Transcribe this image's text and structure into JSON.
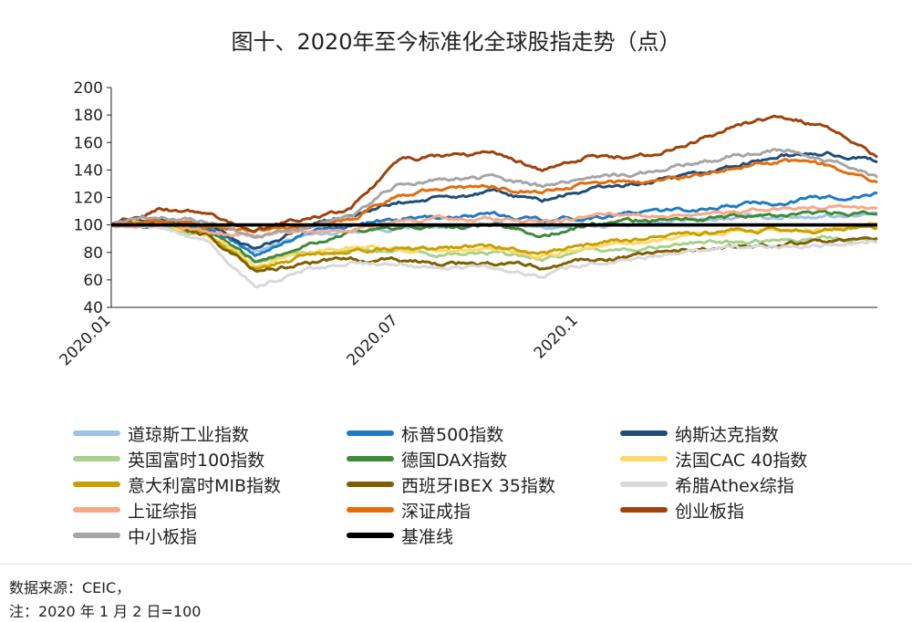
{
  "title": "图十、2020年至今标准化全球股指走势（点）",
  "notes": {
    "source": "数据来源：CEIC，",
    "base": "注：2020 年 1 月 2 日=100"
  },
  "chart_data": {
    "type": "line",
    "ylim": [
      40,
      200
    ],
    "yticks": [
      "200",
      "180",
      "160",
      "140",
      "120",
      "100",
      "80",
      "60",
      "40"
    ],
    "xtick_labels": [
      "2020.01",
      "2020.07",
      "2020.1"
    ],
    "grid": false,
    "legend_position": "bottom",
    "series": [
      {
        "name": "道琼斯工业指数",
        "color": "#9dc3e6",
        "values": [
          100,
          101,
          98,
          80,
          92,
          96,
          98,
          99,
          100,
          98,
          99,
          101,
          103,
          105,
          106,
          107,
          108
        ]
      },
      {
        "name": "标普500指数",
        "color": "#1f7cc4",
        "values": [
          100,
          102,
          97,
          78,
          94,
          100,
          104,
          106,
          107,
          104,
          106,
          109,
          111,
          114,
          117,
          120,
          122
        ]
      },
      {
        "name": "纳斯达克指数",
        "color": "#1f4e79",
        "values": [
          100,
          104,
          100,
          82,
          98,
          108,
          116,
          120,
          123,
          118,
          126,
          130,
          134,
          143,
          150,
          152,
          146
        ]
      },
      {
        "name": "英国富时100指数",
        "color": "#a9d18e",
        "values": [
          100,
          99,
          93,
          72,
          80,
          82,
          80,
          78,
          79,
          76,
          80,
          83,
          86,
          88,
          90,
          91,
          90
        ]
      },
      {
        "name": "德国DAX指数",
        "color": "#3d8b37",
        "values": [
          100,
          102,
          95,
          73,
          86,
          94,
          98,
          99,
          100,
          92,
          100,
          103,
          104,
          106,
          107,
          108,
          110
        ]
      },
      {
        "name": "法国CAC 40指数",
        "color": "#ffd966",
        "values": [
          100,
          101,
          94,
          71,
          80,
          84,
          83,
          82,
          82,
          78,
          84,
          88,
          92,
          95,
          97,
          98,
          100
        ]
      },
      {
        "name": "意大利富时MIB指数",
        "color": "#c9a000",
        "values": [
          100,
          102,
          94,
          68,
          77,
          82,
          83,
          84,
          84,
          80,
          86,
          90,
          93,
          95,
          96,
          97,
          97
        ]
      },
      {
        "name": "西班牙IBEX 35指数",
        "color": "#7f6000",
        "values": [
          100,
          101,
          93,
          66,
          72,
          75,
          74,
          72,
          72,
          69,
          74,
          78,
          82,
          85,
          86,
          87,
          89
        ]
      },
      {
        "name": "希腊Athex综指",
        "color": "#d9d9d9",
        "values": [
          100,
          99,
          88,
          55,
          66,
          72,
          71,
          69,
          69,
          63,
          72,
          76,
          80,
          83,
          84,
          85,
          88
        ]
      },
      {
        "name": "上证综指",
        "color": "#f8a887",
        "values": [
          100,
          101,
          94,
          92,
          95,
          97,
          102,
          104,
          104,
          103,
          106,
          107,
          108,
          110,
          112,
          113,
          112
        ]
      },
      {
        "name": "深证成指",
        "color": "#e46c0a",
        "values": [
          100,
          104,
          100,
          94,
          98,
          104,
          122,
          127,
          128,
          124,
          130,
          131,
          135,
          141,
          147,
          143,
          130
        ]
      },
      {
        "name": "创业板指",
        "color": "#a0420c",
        "values": [
          100,
          112,
          108,
          96,
          104,
          112,
          148,
          150,
          152,
          140,
          150,
          149,
          158,
          172,
          180,
          170,
          150
        ]
      },
      {
        "name": "中小板指",
        "color": "#a6a6a6",
        "values": [
          100,
          106,
          103,
          92,
          98,
          106,
          130,
          134,
          135,
          128,
          135,
          137,
          144,
          150,
          155,
          148,
          134
        ]
      },
      {
        "name": "基准线",
        "color": "#000000",
        "values": [
          100,
          100,
          100,
          100,
          100,
          100,
          100,
          100,
          100,
          100,
          100,
          100,
          100,
          100,
          100,
          100,
          100
        ]
      }
    ]
  }
}
